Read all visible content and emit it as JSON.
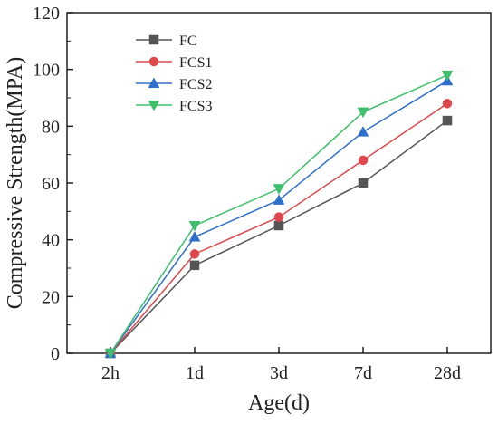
{
  "chart_data": {
    "type": "line",
    "categories": [
      "2h",
      "1d",
      "3d",
      "7d",
      "28d"
    ],
    "series": [
      {
        "name": "FC",
        "values": [
          0,
          31,
          45,
          60,
          82
        ],
        "color": "#555555",
        "marker": "square"
      },
      {
        "name": "FCS1",
        "values": [
          0,
          35,
          48,
          68,
          88
        ],
        "color": "#e0474c",
        "marker": "circle"
      },
      {
        "name": "FCS2",
        "values": [
          0,
          41,
          54,
          78,
          96
        ],
        "color": "#2f6fcc",
        "marker": "triangle-up"
      },
      {
        "name": "FCS3",
        "values": [
          0,
          45,
          58,
          85,
          98
        ],
        "color": "#3dbf6b",
        "marker": "triangle-down"
      }
    ],
    "xlabel": "Age(d)",
    "ylabel": "Compressive Strength(MPA)",
    "ylim": [
      0,
      120
    ],
    "yticks": [
      0,
      20,
      40,
      60,
      80,
      100,
      120
    ],
    "grid": false,
    "legend": "top-left"
  }
}
